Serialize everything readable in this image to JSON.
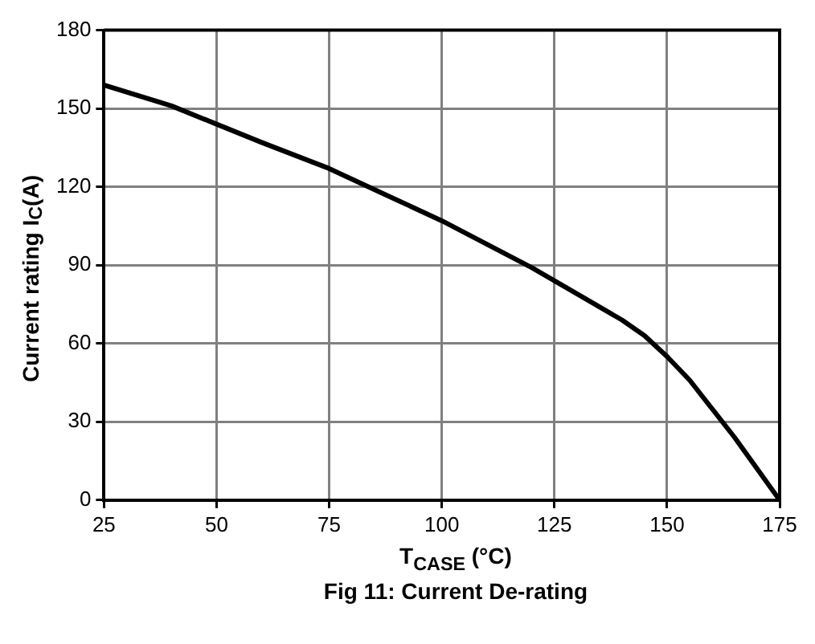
{
  "chart_data": {
    "type": "line",
    "title": "Fig 11: Current De-rating",
    "xlabel": "T$_{CASE}$ (°C)",
    "ylabel": "Current rating I$_{C}$(A)",
    "x": [
      25,
      40,
      50,
      60,
      75,
      90,
      100,
      110,
      120,
      130,
      140,
      145,
      150,
      155,
      160,
      165,
      170,
      175
    ],
    "series": [
      {
        "color": "#000000",
        "values": [
          159,
          151,
          144,
          137,
          127,
          115,
          107,
          98,
          89,
          79,
          69,
          63,
          55,
          46,
          35,
          24,
          12,
          0
        ]
      }
    ],
    "xlim": [
      25,
      175
    ],
    "xticks": [
      25,
      50,
      75,
      100,
      125,
      150,
      175
    ],
    "ylim": [
      0,
      180
    ],
    "yticks": [
      0,
      30,
      60,
      90,
      120,
      150,
      180
    ],
    "grid": true,
    "legend": false,
    "marker": "none",
    "line_style": "solid"
  }
}
